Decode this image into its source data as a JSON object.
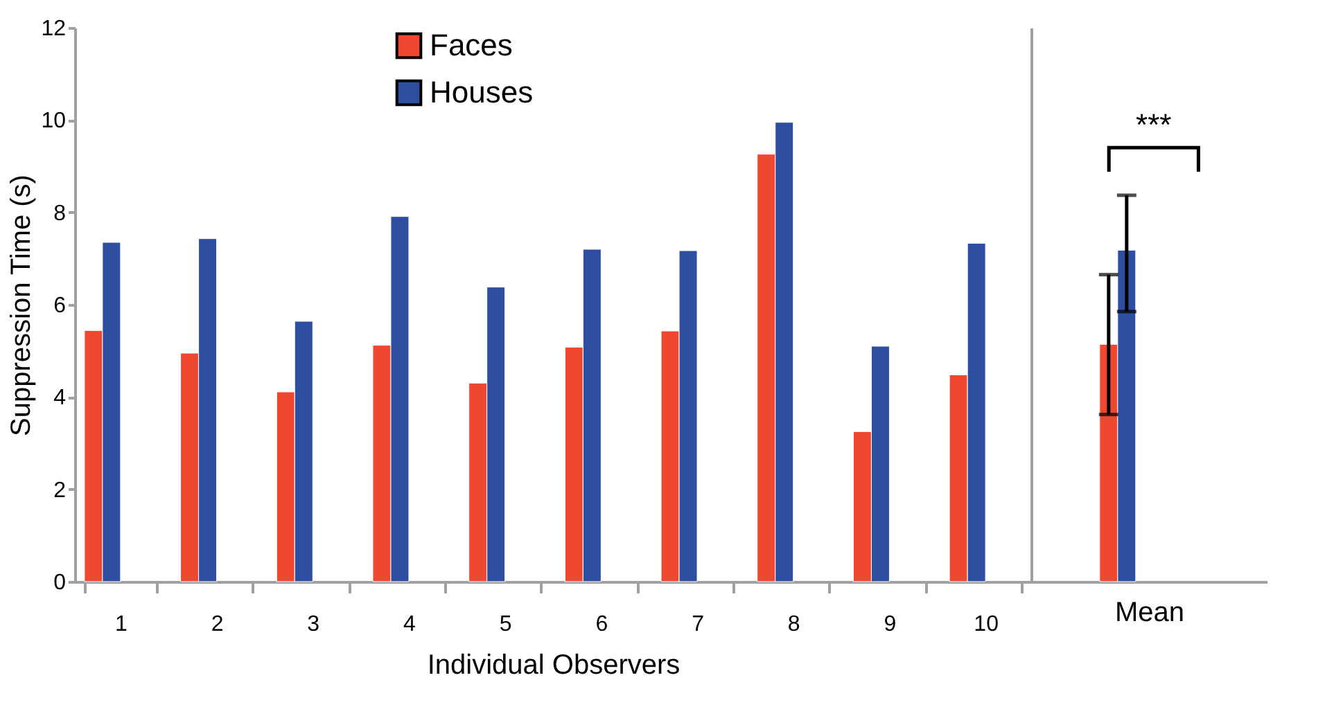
{
  "chart_data": [
    {
      "type": "bar",
      "categories": [
        "1",
        "2",
        "3",
        "4",
        "5",
        "6",
        "7",
        "8",
        "9",
        "10"
      ],
      "xlabel": "Individual Observers",
      "ylabel": "Suppression Time (s)",
      "ylim": [
        0,
        12
      ],
      "yticks": [
        0,
        2,
        4,
        6,
        8,
        10,
        12
      ],
      "legend": "top",
      "series": [
        {
          "name": "Faces",
          "color": "#f04730",
          "values": [
            5.44,
            4.95,
            4.11,
            5.12,
            4.3,
            5.08,
            5.43,
            9.26,
            3.25,
            4.48
          ]
        },
        {
          "name": "Houses",
          "color": "#2e4ea0",
          "values": [
            7.35,
            7.43,
            5.64,
            7.91,
            6.38,
            7.2,
            7.17,
            9.95,
            5.1,
            7.33
          ]
        }
      ]
    },
    {
      "type": "bar",
      "categories": [
        null
      ],
      "xlabel": "Mean",
      "ylim": [
        0,
        12
      ],
      "tick_labels": false,
      "series": [
        {
          "color": "#f04730",
          "values": [
            5.14
          ],
          "errors": [
            [
              3.62,
              6.65
            ]
          ]
        },
        {
          "color": "#2e4ea0",
          "values": [
            7.18
          ],
          "errors": [
            [
              5.85,
              8.37
            ]
          ]
        }
      ],
      "annotations": [
        "***"
      ]
    }
  ]
}
